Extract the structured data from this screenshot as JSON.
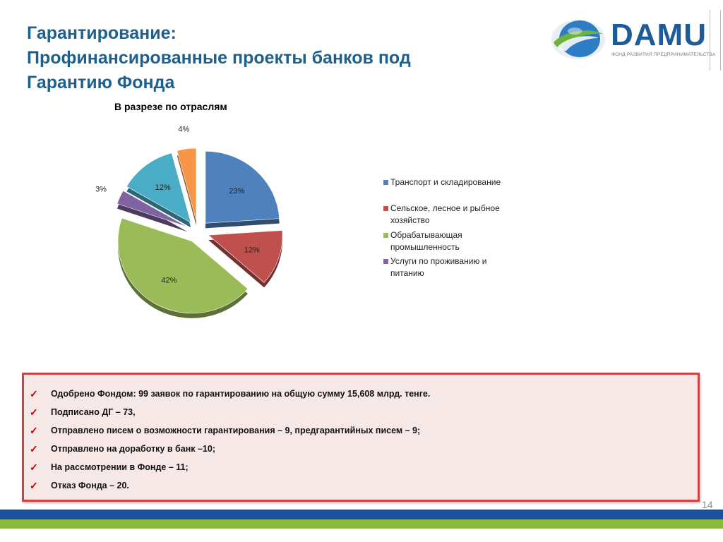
{
  "slide": {
    "title_lines": [
      "Гарантирование:",
      "Профинансированные проекты банков под",
      "Гарантию Фонда"
    ],
    "page_number": "14"
  },
  "logo": {
    "word": "DAMU",
    "subtitle": "ФОНД РАЗВИТИЯ ПРЕДПРИНИМАТЕЛЬСТВА",
    "colors": {
      "blue": "#1d5b99",
      "green": "#6fb33f",
      "orb_blue": "#2e7dc4"
    }
  },
  "chart_data": {
    "type": "pie",
    "title": "В разрезе по отраслям",
    "slices": [
      {
        "label": "Транспорт и складирование",
        "value": 23,
        "label_text": "23%",
        "color": "#4f81bd"
      },
      {
        "label": "Сельское, лесное и рыбное хозяйство",
        "value": 12,
        "label_text": "12%",
        "color": "#c0504d"
      },
      {
        "label": "Обрабатывающая промышленность",
        "value": 42,
        "label_text": "42%",
        "color": "#9bbb59"
      },
      {
        "label": "Услуги по проживанию и питанию",
        "value": 3,
        "label_text": "3%",
        "color": "#8064a2"
      },
      {
        "label": "",
        "value": 12,
        "label_text": "12%",
        "color": "#4bacc6"
      },
      {
        "label": "",
        "value": 4,
        "label_text": "4%",
        "color": "#f79646"
      }
    ],
    "legend_entries": [
      {
        "text": "Транспорт и складирование",
        "color": "#4f81bd"
      },
      {
        "text": "Сельское, лесное и рыбное хозяйство",
        "color": "#c0504d"
      },
      {
        "text": "Обрабатывающая промышленность",
        "color": "#9bbb59"
      },
      {
        "text": "Услуги по проживанию и питанию",
        "color": "#8064a2"
      }
    ],
    "legend_position": "right",
    "exploded": true
  },
  "info": {
    "items": [
      "Одобрено Фондом: 99 заявок по гарантированию на общую сумму  15,608 млрд. тенге.",
      "Подписано ДГ – 73,",
      "Отправлено писем о возможности гарантирования – 9, предгарантийных писем – 9;",
      "Отправлено на доработку в банк –10;",
      "На рассмотрении в Фонде – 11;",
      "Отказ Фонда –  20."
    ],
    "check_glyph": "✓",
    "colors": {
      "border": "#d14242",
      "background": "#f7e8e8",
      "check": "#c00000"
    }
  },
  "theme": {
    "title_color": "#1f5f8b",
    "band_blue": "#1d4f9a",
    "band_green": "#8bbb3c"
  }
}
